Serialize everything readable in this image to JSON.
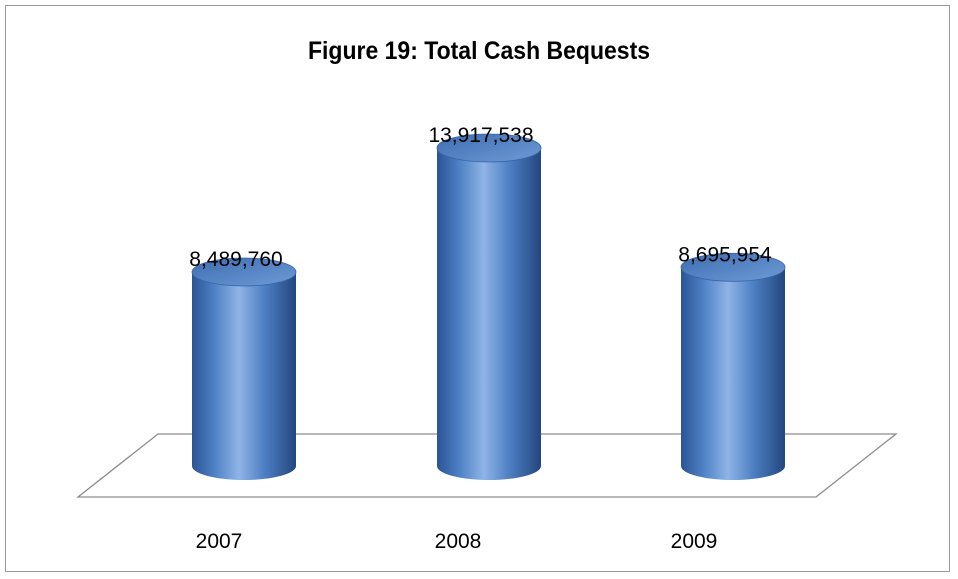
{
  "chart_data": {
    "type": "bar",
    "title": "Figure 19: Total Cash Bequests",
    "xlabel": "",
    "ylabel": "",
    "categories": [
      "2007",
      "2008",
      "2009"
    ],
    "values": [
      8489760,
      13917538,
      8695954
    ],
    "value_labels": [
      "8,489,760",
      "13,917,538",
      "8,695,954"
    ],
    "style": "3d-cylinder",
    "grid": false,
    "legend": "none",
    "colors": {
      "bar_base": "#3f6fb4",
      "bar_highlight": "#8fb4e6",
      "bar_dark": "#224b86",
      "bar_top": "#5b88c8",
      "floor_stroke": "#8c8c8c",
      "frame_stroke": "#9a9a9a"
    }
  }
}
